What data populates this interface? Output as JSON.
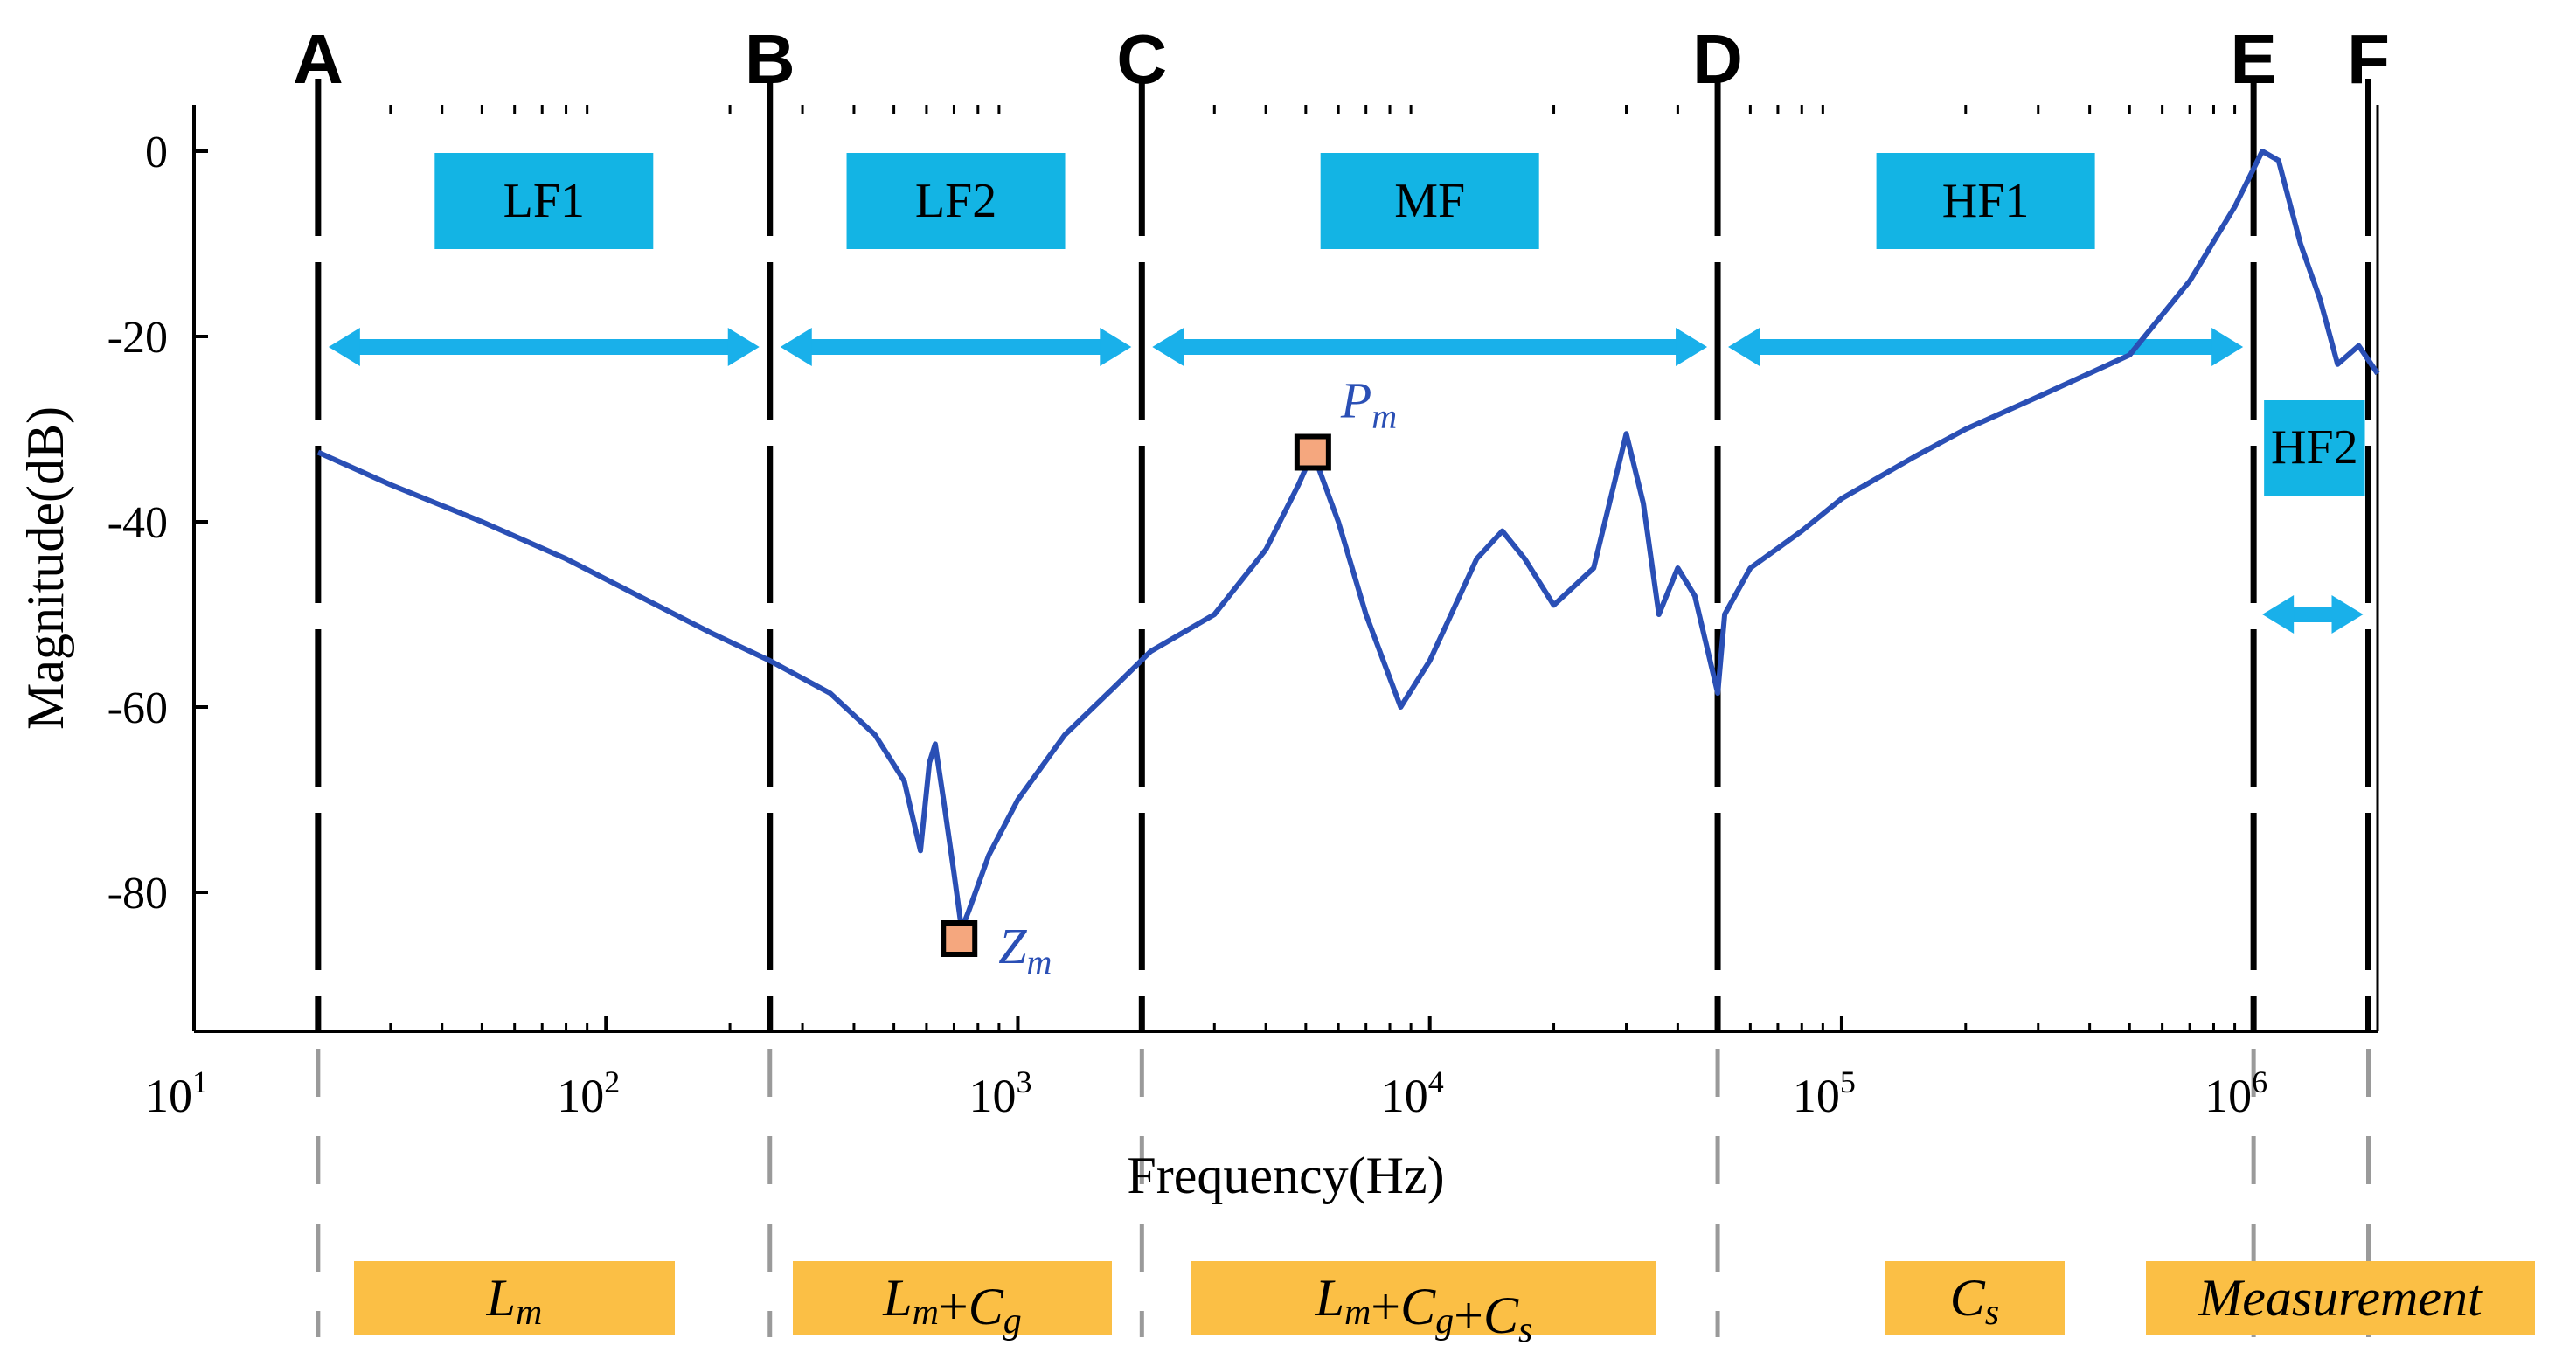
{
  "chart_data": {
    "type": "line",
    "xscale": "log",
    "xlim": [
      10,
      2000000
    ],
    "ylim": [
      -95,
      5
    ],
    "xlabel": "Frequency(Hz)",
    "ylabel": "Magnitude(dB)",
    "y_ticks": [
      0,
      -20,
      -40,
      -60,
      -80
    ],
    "y_tick_labels": [
      "0",
      "-20",
      "-40",
      "-60",
      "-80"
    ],
    "x_ticks": [
      {
        "value": 10,
        "base": "10",
        "exp": "1"
      },
      {
        "value": 100,
        "base": "10",
        "exp": "2"
      },
      {
        "value": 1000,
        "base": "10",
        "exp": "3"
      },
      {
        "value": 10000,
        "base": "10",
        "exp": "4"
      },
      {
        "value": 100000,
        "base": "10",
        "exp": "5"
      },
      {
        "value": 1000000,
        "base": "10",
        "exp": "6"
      }
    ],
    "series": [
      {
        "name": "Magnitude",
        "color": "#2a4fb5",
        "points": [
          [
            20,
            -32.5
          ],
          [
            30,
            -36
          ],
          [
            50,
            -40
          ],
          [
            80,
            -44
          ],
          [
            120,
            -48
          ],
          [
            180,
            -52
          ],
          [
            250,
            -55
          ],
          [
            350,
            -58.5
          ],
          [
            450,
            -63
          ],
          [
            530,
            -68
          ],
          [
            580,
            -75.5
          ],
          [
            610,
            -66
          ],
          [
            630,
            -64
          ],
          [
            660,
            -70
          ],
          [
            700,
            -78
          ],
          [
            730,
            -84
          ],
          [
            760,
            -82
          ],
          [
            850,
            -76
          ],
          [
            1000,
            -70
          ],
          [
            1300,
            -63
          ],
          [
            1700,
            -58
          ],
          [
            2100,
            -54
          ],
          [
            3000,
            -50
          ],
          [
            4000,
            -43
          ],
          [
            4800,
            -36
          ],
          [
            5200,
            -32.5
          ],
          [
            6000,
            -40
          ],
          [
            7000,
            -50
          ],
          [
            8500,
            -60
          ],
          [
            10000,
            -55
          ],
          [
            13000,
            -44
          ],
          [
            15000,
            -41
          ],
          [
            17000,
            -44
          ],
          [
            20000,
            -49
          ],
          [
            25000,
            -45
          ],
          [
            30000,
            -30.5
          ],
          [
            33000,
            -38
          ],
          [
            36000,
            -50
          ],
          [
            40000,
            -45
          ],
          [
            44000,
            -48
          ],
          [
            50000,
            -58.5
          ],
          [
            52000,
            -50
          ],
          [
            60000,
            -45
          ],
          [
            80000,
            -41
          ],
          [
            100000,
            -37.5
          ],
          [
            150000,
            -33
          ],
          [
            200000,
            -30
          ],
          [
            300000,
            -26.5
          ],
          [
            500000,
            -22
          ],
          [
            700000,
            -14
          ],
          [
            900000,
            -6
          ],
          [
            1050000,
            0
          ],
          [
            1150000,
            -1
          ],
          [
            1300000,
            -10
          ],
          [
            1450000,
            -16
          ],
          [
            1600000,
            -23
          ],
          [
            1800000,
            -21
          ],
          [
            2000000,
            -24
          ]
        ]
      }
    ],
    "markers": [
      {
        "label_main": "Z",
        "label_sub": "m",
        "x": 720,
        "y": -85,
        "fill": "#f5a77e"
      },
      {
        "label_main": "P",
        "label_sub": "m",
        "x": 5200,
        "y": -32.5,
        "fill": "#f5a77e"
      }
    ],
    "boundaries": [
      {
        "label": "A",
        "freq": 20
      },
      {
        "label": "B",
        "freq": 250
      },
      {
        "label": "C",
        "freq": 2000
      },
      {
        "label": "D",
        "freq": 50000
      },
      {
        "label": "E",
        "freq": 1000000
      },
      {
        "label": "F",
        "freq": 1900000
      }
    ],
    "regions": [
      {
        "label": "LF1",
        "from": "A",
        "to": "B"
      },
      {
        "label": "LF2",
        "from": "B",
        "to": "C"
      },
      {
        "label": "MF",
        "from": "C",
        "to": "D"
      },
      {
        "label": "HF1",
        "from": "D",
        "to": "E"
      },
      {
        "label": "HF2",
        "from": "E",
        "to": "F"
      }
    ],
    "components": [
      {
        "parts": [
          {
            "t": "L",
            "s": "m"
          }
        ]
      },
      {
        "parts": [
          {
            "t": "L",
            "s": "m"
          },
          {
            "op": "+"
          },
          {
            "t": "C",
            "s": "g"
          }
        ]
      },
      {
        "parts": [
          {
            "t": "L",
            "s": "m"
          },
          {
            "op": "+"
          },
          {
            "t": "C",
            "s": "g"
          },
          {
            "op": "+"
          },
          {
            "t": "C",
            "s": "s"
          }
        ]
      },
      {
        "parts": [
          {
            "t": "C",
            "s": "s"
          }
        ]
      },
      {
        "parts": [
          {
            "t": "Measurement"
          }
        ]
      }
    ],
    "colors": {
      "curve": "#2a4fb5",
      "region_box": "#13b4e4",
      "arrow": "#19b0ea",
      "component_box": "#fbbf45",
      "marker_fill": "#f5a77e",
      "label_blue": "#2a4fb5"
    }
  }
}
